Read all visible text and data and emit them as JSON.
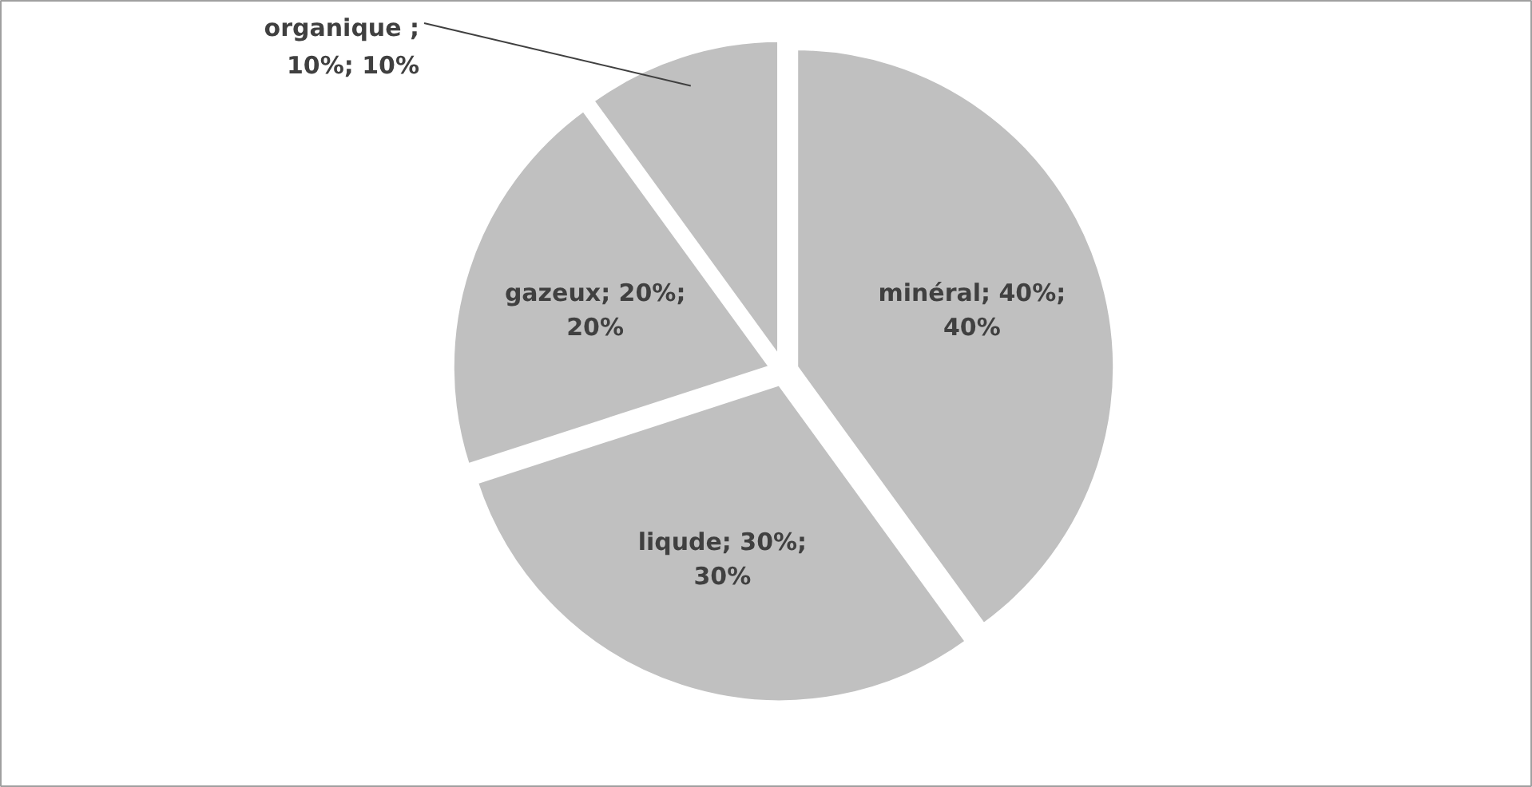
{
  "chart_data": {
    "type": "pie",
    "categories": [
      "minéral",
      "liqude",
      "gazeux",
      "organique"
    ],
    "values": [
      40,
      30,
      20,
      10
    ],
    "colors": [
      "#c0c0c0",
      "#c0c0c0",
      "#c0c0c0",
      "#c0c0c0"
    ],
    "value_labels": [
      "; 40%; 40%",
      "; 30%; 30%",
      "; 20%; 20%",
      " ; 10%; 10%"
    ]
  }
}
